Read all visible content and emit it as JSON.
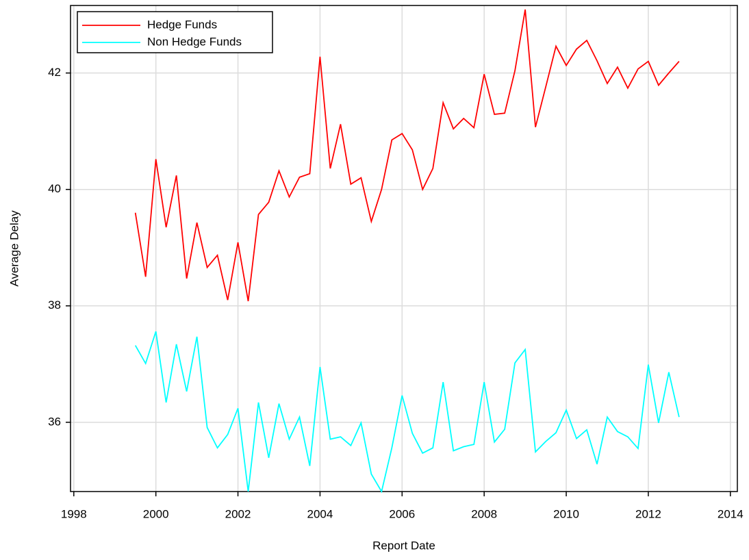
{
  "chart_data": {
    "type": "line",
    "x_label": "Report Date",
    "y_label": "Average Delay",
    "x": [
      1999.5,
      1999.75,
      2000,
      2000.25,
      2000.5,
      2000.75,
      2001,
      2001.25,
      2001.5,
      2001.75,
      2002,
      2002.25,
      2002.5,
      2002.75,
      2003,
      2003.25,
      2003.5,
      2003.75,
      2004,
      2004.25,
      2004.5,
      2004.75,
      2005,
      2005.25,
      2005.5,
      2005.75,
      2006,
      2006.25,
      2006.5,
      2006.75,
      2007,
      2007.25,
      2007.5,
      2007.75,
      2008,
      2008.25,
      2008.5,
      2008.75,
      2009,
      2009.25,
      2009.5,
      2009.75,
      2010,
      2010.25,
      2010.5,
      2010.75,
      2011,
      2011.25,
      2011.5,
      2011.75,
      2012,
      2012.25,
      2012.5,
      2012.75
    ],
    "series": [
      {
        "name": "Hedge Funds",
        "color": "#ff0000",
        "values": [
          39.6,
          38.5,
          40.52,
          39.35,
          40.24,
          38.47,
          39.43,
          38.66,
          38.87,
          38.1,
          39.09,
          38.08,
          39.57,
          39.78,
          40.32,
          39.87,
          40.21,
          40.27,
          42.28,
          40.36,
          41.12,
          40.09,
          40.2,
          39.45,
          40.0,
          40.85,
          40.96,
          40.68,
          40.0,
          40.36,
          41.49,
          41.04,
          41.22,
          41.06,
          41.98,
          41.29,
          41.31,
          42.04,
          43.09,
          41.07,
          41.76,
          42.46,
          42.13,
          42.41,
          42.56,
          42.21,
          41.82,
          42.1,
          41.74,
          42.07,
          42.2,
          41.79,
          42.0,
          42.2
        ]
      },
      {
        "name": "Non Hedge Funds",
        "color": "#00ffff",
        "values": [
          37.32,
          37.01,
          37.56,
          36.34,
          37.34,
          36.53,
          37.47,
          35.91,
          35.56,
          35.79,
          36.24,
          34.81,
          36.34,
          35.39,
          36.32,
          35.71,
          36.09,
          35.25,
          36.95,
          35.71,
          35.75,
          35.6,
          35.99,
          35.11,
          34.81,
          35.56,
          36.46,
          35.81,
          35.47,
          35.56,
          36.69,
          35.51,
          35.58,
          35.62,
          36.69,
          35.66,
          35.88,
          37.02,
          37.25,
          35.49,
          35.67,
          35.82,
          36.21,
          35.72,
          35.87,
          35.28,
          36.09,
          35.84,
          35.75,
          35.55,
          36.99,
          35.99,
          36.86,
          36.09
        ]
      }
    ],
    "xlim": [
      1997.92,
      2014.17
    ],
    "xticks": [
      1998,
      2000,
      2002,
      2004,
      2006,
      2008,
      2010,
      2012,
      2014
    ],
    "ylim": [
      34.81,
      43.16
    ],
    "yticks": [
      36,
      38,
      40,
      42
    ],
    "grid": true,
    "legend": "upper left"
  }
}
